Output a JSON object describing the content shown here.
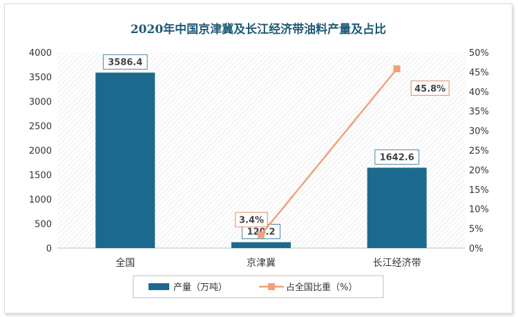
{
  "chart_data": {
    "type": "bar",
    "title": "2020年中国京津冀及长江经济带油料产量及占比",
    "categories": [
      "全国",
      "京津冀",
      "长江经济带"
    ],
    "series": [
      {
        "name": "产量（万吨）",
        "type": "bar",
        "axis": "left",
        "values": [
          3586.4,
          120.2,
          1642.6
        ],
        "labels": [
          "3586.4",
          "120.2",
          "1642.6"
        ],
        "color": "#1b6a8e"
      },
      {
        "name": "占全国比重（%）",
        "type": "line",
        "axis": "right",
        "values": [
          null,
          3.4,
          45.8
        ],
        "labels": [
          "",
          "3.4%",
          "45.8%"
        ],
        "color": "#f0a07c"
      }
    ],
    "y_left": {
      "min": 0,
      "max": 4000,
      "step": 500,
      "ticks": [
        "0",
        "500",
        "1000",
        "1500",
        "2000",
        "2500",
        "3000",
        "3500",
        "4000"
      ]
    },
    "y_right": {
      "min": 0,
      "max": 50,
      "step": 5,
      "ticks": [
        "0%",
        "5%",
        "10%",
        "15%",
        "20%",
        "25%",
        "30%",
        "35%",
        "40%",
        "45%",
        "50%"
      ]
    },
    "legend_position": "bottom",
    "grid": false,
    "plot_background": "diagonal-hatch"
  }
}
